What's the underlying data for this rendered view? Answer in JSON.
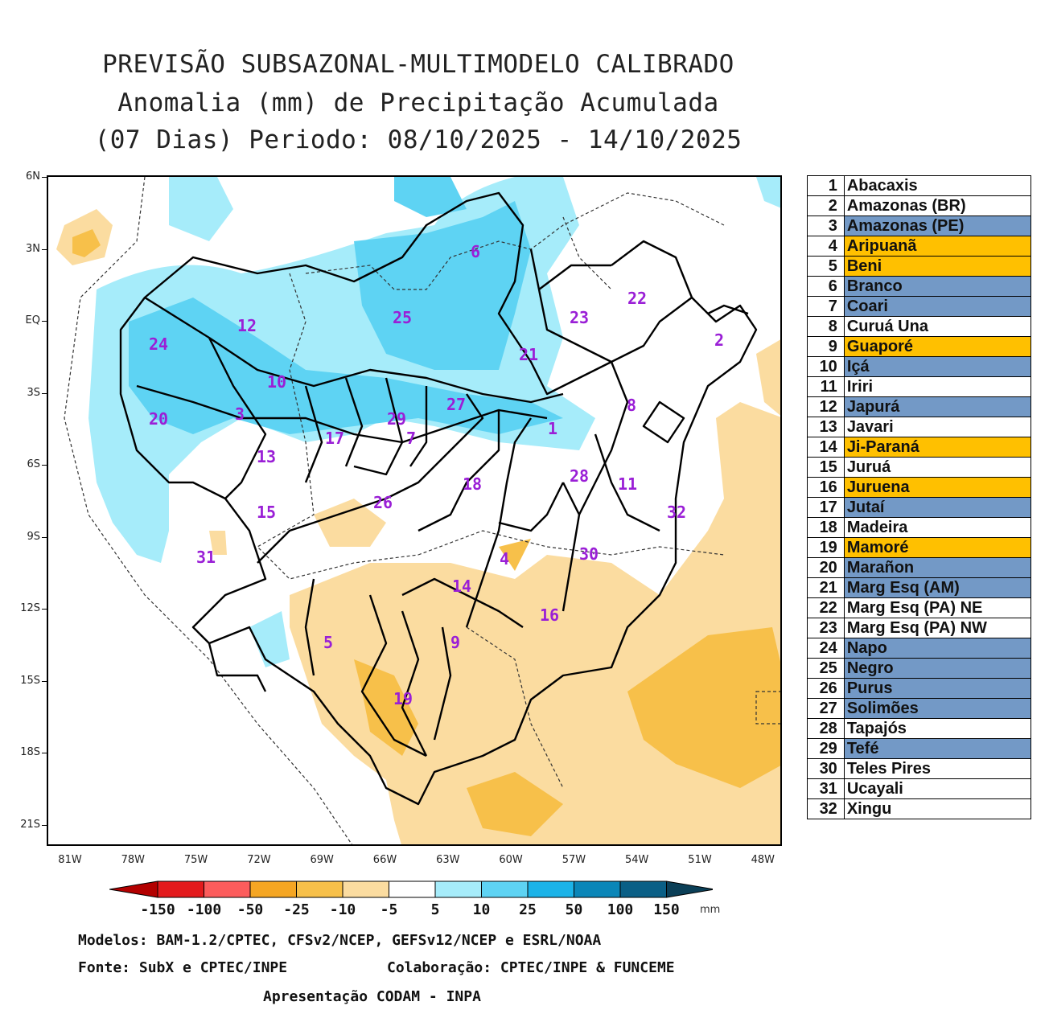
{
  "title": {
    "line1": "PREVISÃO SUBSAZONAL-MULTIMODELO CALIBRADO",
    "line2": "Anomalia (mm) de Precipitação Acumulada",
    "line3": "(07 Dias) Periodo: 08/10/2025 - 14/10/2025"
  },
  "axes": {
    "lat_labels": [
      "6N",
      "3N",
      "EQ",
      "3S",
      "6S",
      "9S",
      "12S",
      "15S",
      "18S",
      "21S"
    ],
    "lon_labels": [
      "81W",
      "78W",
      "75W",
      "72W",
      "69W",
      "66W",
      "63W",
      "60W",
      "57W",
      "54W",
      "51W",
      "48W"
    ]
  },
  "basin_labels": [
    "6",
    "22",
    "25",
    "23",
    "12",
    "2",
    "24",
    "21",
    "10",
    "27",
    "8",
    "3",
    "29",
    "1",
    "20",
    "17",
    "7",
    "13",
    "28",
    "18",
    "11",
    "26",
    "15",
    "32",
    "31",
    "4",
    "30",
    "14",
    "16",
    "5",
    "9",
    "19"
  ],
  "colorbar": {
    "labels": [
      "-150",
      "-100",
      "-50",
      "-25",
      "-10",
      "-5",
      "5",
      "10",
      "25",
      "50",
      "100",
      "150"
    ],
    "unit": "mm",
    "colors": [
      "#b30000",
      "#e31a1c",
      "#fc5c5c",
      "#f5a623",
      "#f7c04a",
      "#fbdca0",
      "#ffffff",
      "#a6ecfa",
      "#5ed3f3",
      "#1bb3e8",
      "#0a86b8",
      "#0a5f86",
      "#0b3f57"
    ]
  },
  "footer": {
    "models": "Modelos: BAM-1.2/CPTEC, CFSv2/NCEP, GEFSv12/NCEP e ESRL/NOAA",
    "source": "Fonte: SubX e CPTEC/INPE",
    "collab": "Colaboração: CPTEC/INPE & FUNCEME",
    "presentation": "Apresentação CODAM - INPA"
  },
  "basins_table": [
    {
      "num": "1",
      "name": "Abacaxis",
      "color": "#ffffff"
    },
    {
      "num": "2",
      "name": "Amazonas (BR)",
      "color": "#ffffff"
    },
    {
      "num": "3",
      "name": "Amazonas (PE)",
      "color": "#7399c6"
    },
    {
      "num": "4",
      "name": "Aripuanã",
      "color": "#ffc000"
    },
    {
      "num": "5",
      "name": "Beni",
      "color": "#ffc000"
    },
    {
      "num": "6",
      "name": "Branco",
      "color": "#7399c6"
    },
    {
      "num": "7",
      "name": "Coari",
      "color": "#7399c6"
    },
    {
      "num": "8",
      "name": "Curuá Una",
      "color": "#ffffff"
    },
    {
      "num": "9",
      "name": "Guaporé",
      "color": "#ffc000"
    },
    {
      "num": "10",
      "name": "Içá",
      "color": "#7399c6"
    },
    {
      "num": "11",
      "name": "Iriri",
      "color": "#ffffff"
    },
    {
      "num": "12",
      "name": "Japurá",
      "color": "#7399c6"
    },
    {
      "num": "13",
      "name": "Javari",
      "color": "#ffffff"
    },
    {
      "num": "14",
      "name": "Ji-Paraná",
      "color": "#ffc000"
    },
    {
      "num": "15",
      "name": "Juruá",
      "color": "#ffffff"
    },
    {
      "num": "16",
      "name": "Juruena",
      "color": "#ffc000"
    },
    {
      "num": "17",
      "name": "Jutaí",
      "color": "#7399c6"
    },
    {
      "num": "18",
      "name": "Madeira",
      "color": "#ffffff"
    },
    {
      "num": "19",
      "name": "Mamoré",
      "color": "#ffc000"
    },
    {
      "num": "20",
      "name": "Marañon",
      "color": "#7399c6"
    },
    {
      "num": "21",
      "name": "Marg Esq (AM)",
      "color": "#7399c6"
    },
    {
      "num": "22",
      "name": "Marg Esq (PA) NE",
      "color": "#ffffff"
    },
    {
      "num": "23",
      "name": "Marg Esq (PA) NW",
      "color": "#ffffff"
    },
    {
      "num": "24",
      "name": "Napo",
      "color": "#7399c6"
    },
    {
      "num": "25",
      "name": "Negro",
      "color": "#7399c6"
    },
    {
      "num": "26",
      "name": "Purus",
      "color": "#7399c6"
    },
    {
      "num": "27",
      "name": "Solimões",
      "color": "#7399c6"
    },
    {
      "num": "28",
      "name": "Tapajós",
      "color": "#ffffff"
    },
    {
      "num": "29",
      "name": "Tefé",
      "color": "#7399c6"
    },
    {
      "num": "30",
      "name": "Teles Pires",
      "color": "#ffffff"
    },
    {
      "num": "31",
      "name": "Ucayali",
      "color": "#ffffff"
    },
    {
      "num": "32",
      "name": "Xingu",
      "color": "#ffffff"
    }
  ]
}
